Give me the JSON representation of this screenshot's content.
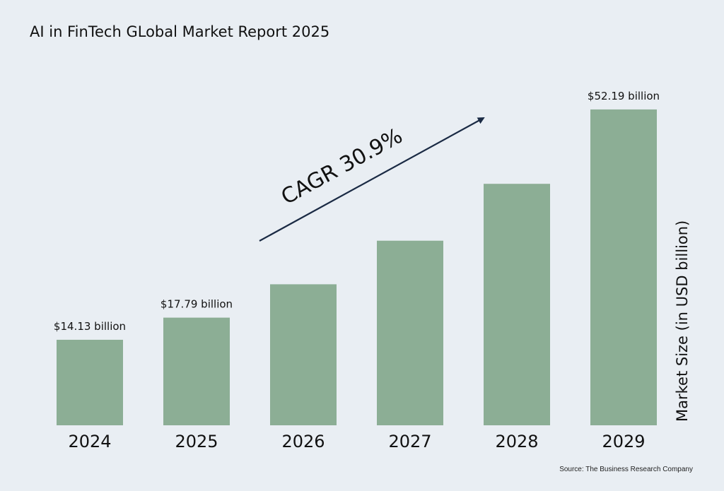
{
  "chart_data": {
    "type": "bar",
    "title": "AI in FinTech GLobal Market Report 2025",
    "ylabel": "Market Size (in USD billion)",
    "categories": [
      "2024",
      "2025",
      "2026",
      "2027",
      "2028",
      "2029"
    ],
    "values": [
      14.13,
      17.79,
      23.3,
      30.5,
      39.9,
      52.19
    ],
    "data_labels": [
      "$14.13 billion",
      "$17.79 billion",
      "",
      "",
      "",
      "$52.19 billion"
    ],
    "annotation": "CAGR 30.9%",
    "ylim": [
      0,
      60
    ],
    "grid": false,
    "bar_color": "#8cae95"
  },
  "footer": {
    "source": "Source: The Business Research Company"
  },
  "colors": {
    "background": "#e9eef3",
    "arrow": "#1a2a44"
  }
}
